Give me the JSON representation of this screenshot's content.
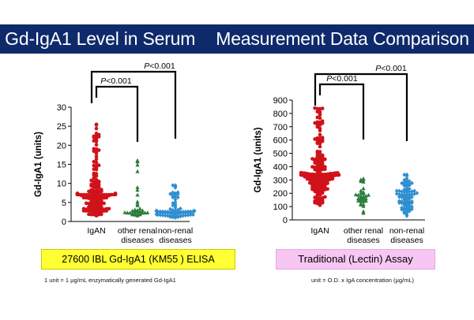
{
  "banner": {
    "title_left": "Gd-IgA1 Level in Serum",
    "title_right": "Measurement Data Comparison"
  },
  "chart_data": [
    {
      "type": "scatter",
      "subtype": "dot-plot",
      "ylabel": "Gd-IgA1 (units)",
      "ylim": [
        0,
        30
      ],
      "yticks": [
        0,
        5,
        10,
        15,
        20,
        25,
        30
      ],
      "categories": [
        "IgAN",
        "other renal\ndiseases",
        "non-renal\ndiseases"
      ],
      "series": [
        {
          "marker": "circle",
          "color": "#d0121b",
          "range": [
            1.5,
            25.5
          ],
          "median": 7,
          "count": 170
        },
        {
          "marker": "triangle",
          "color": "#2a7d3a",
          "range": [
            1.5,
            16
          ],
          "median": 3,
          "count": 30
        },
        {
          "marker": "diamond",
          "color": "#2e8fd0",
          "range": [
            1,
            9.5
          ],
          "median": 2.6,
          "count": 80
        }
      ],
      "comparisons": [
        {
          "from": "IgAN",
          "to": "other renal\ndiseases",
          "label": "P<0.001"
        },
        {
          "from": "IgAN",
          "to": "non-renal\ndiseases",
          "label": "P<0.001"
        }
      ],
      "caption": "27600 IBL Gd-IgA1 (KM55 ) ELISA",
      "note": "1 unit  = 1 μg/mL enzymatically generated Gd-IgA1"
    },
    {
      "type": "scatter",
      "subtype": "dot-plot",
      "ylabel": "Gd-IgA1 (units)",
      "ylim": [
        0,
        900
      ],
      "yticks": [
        0,
        100,
        200,
        300,
        400,
        500,
        600,
        700,
        800,
        900
      ],
      "categories": [
        "IgAN",
        "other renal\ndiseases",
        "non-renal\ndiseases"
      ],
      "series": [
        {
          "marker": "circle",
          "color": "#d0121b",
          "range": [
            110,
            840
          ],
          "median": 330,
          "count": 190
        },
        {
          "marker": "triangle",
          "color": "#2a7d3a",
          "range": [
            50,
            310
          ],
          "median": 175,
          "count": 30
        },
        {
          "marker": "diamond",
          "color": "#2e8fd0",
          "range": [
            30,
            340
          ],
          "median": 190,
          "count": 80
        }
      ],
      "comparisons": [
        {
          "from": "IgAN",
          "to": "other renal\ndiseases",
          "label": "P<0.001"
        },
        {
          "from": "IgAN",
          "to": "non-renal\ndiseases",
          "label": "P<0.001"
        }
      ],
      "caption": "Traditional (Lectin) Assay",
      "note": "unit  = O.D. x IgA concentration (μg/mL)"
    }
  ]
}
